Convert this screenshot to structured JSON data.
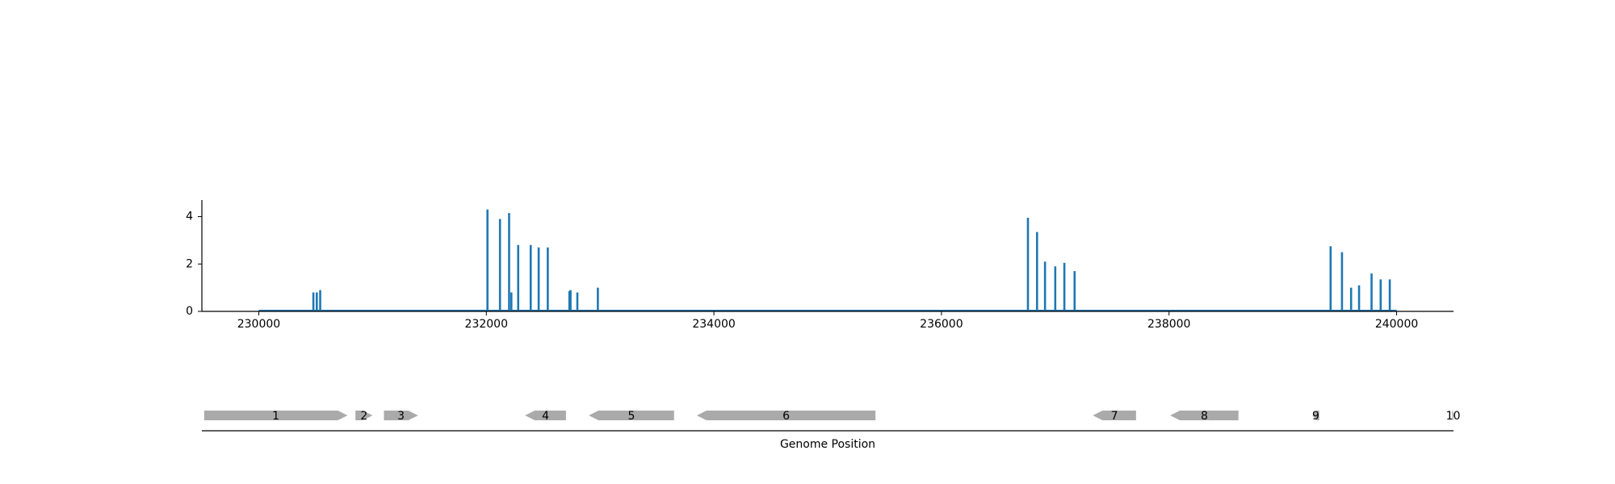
{
  "chart_data": [
    {
      "type": "bar",
      "title": "",
      "xlabel": "",
      "ylabel": "",
      "xlim": [
        229500,
        240500
      ],
      "ylim": [
        0,
        4.7
      ],
      "x_ticks": [
        230000,
        232000,
        234000,
        236000,
        238000,
        240000
      ],
      "x_tick_labels": [
        "230000",
        "232000",
        "234000",
        "236000",
        "238000",
        "240000"
      ],
      "y_ticks": [
        0,
        2,
        4
      ],
      "y_tick_labels": [
        "0",
        "2",
        "4"
      ],
      "baseline": [
        230000,
        240000
      ],
      "color": "#1f77b4",
      "x": [
        230480,
        230510,
        230540,
        232010,
        232120,
        232200,
        232220,
        232280,
        232390,
        232460,
        232540,
        232730,
        232740,
        232800,
        232980,
        236760,
        236840,
        236910,
        237000,
        237080,
        237170,
        239420,
        239520,
        239600,
        239670,
        239780,
        239860,
        239940
      ],
      "values": [
        0.8,
        0.8,
        0.9,
        4.3,
        3.9,
        4.15,
        0.8,
        2.8,
        2.8,
        2.7,
        2.7,
        0.85,
        0.9,
        0.8,
        1.0,
        3.95,
        3.35,
        2.1,
        1.9,
        2.05,
        1.7,
        2.75,
        2.5,
        1.0,
        1.1,
        1.6,
        1.35,
        1.35
      ],
      "grid": false
    },
    {
      "type": "gene-map",
      "xlabel": "Genome Position",
      "xlim": [
        229500,
        240500
      ],
      "color": "#aaaaaa",
      "genes": [
        {
          "label": "1",
          "start": 229520,
          "end": 230780,
          "strand": "+"
        },
        {
          "label": "2",
          "start": 230850,
          "end": 231000,
          "strand": "+"
        },
        {
          "label": "3",
          "start": 231100,
          "end": 231400,
          "strand": "+"
        },
        {
          "label": "4",
          "start": 232340,
          "end": 232700,
          "strand": "-"
        },
        {
          "label": "5",
          "start": 232900,
          "end": 233650,
          "strand": "-"
        },
        {
          "label": "6",
          "start": 233850,
          "end": 235420,
          "strand": "-"
        },
        {
          "label": "7",
          "start": 237330,
          "end": 237710,
          "strand": "-"
        },
        {
          "label": "8",
          "start": 238010,
          "end": 238610,
          "strand": "-"
        },
        {
          "label": "9",
          "start": 239260,
          "end": 239320,
          "strand": "-"
        },
        {
          "label": "10",
          "start": 240490,
          "end": 240500,
          "strand": "+"
        }
      ]
    }
  ]
}
